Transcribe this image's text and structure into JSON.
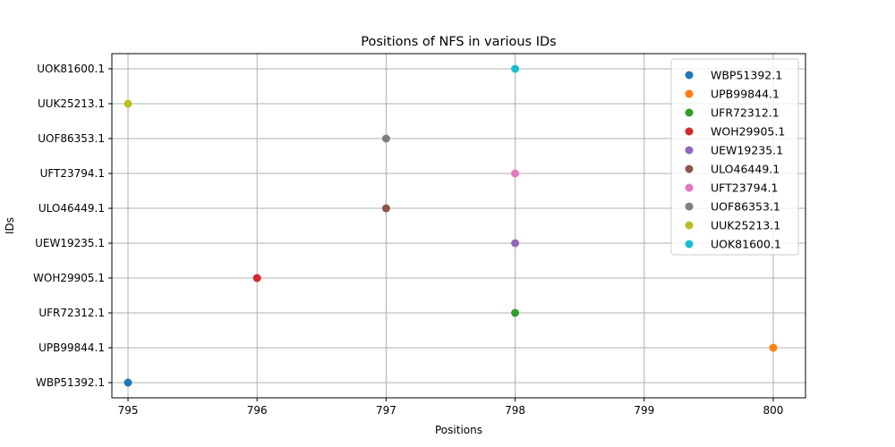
{
  "chart_data": {
    "type": "scatter",
    "title": "Positions of NFS in various IDs",
    "xlabel": "Positions",
    "ylabel": "IDs",
    "xlim": [
      794.875,
      800.25
    ],
    "x_ticks": [
      795,
      796,
      797,
      798,
      799,
      800
    ],
    "categories": [
      "WBP51392.1",
      "UPB99844.1",
      "UFR72312.1",
      "WOH29905.1",
      "UEW19235.1",
      "ULO46449.1",
      "UFT23794.1",
      "UOF86353.1",
      "UUK25213.1",
      "UOK81600.1"
    ],
    "grid": true,
    "legend_position": "top-right",
    "series": [
      {
        "name": "WBP51392.1",
        "x": 795,
        "y": "WBP51392.1",
        "color": "#1f77b4"
      },
      {
        "name": "UPB99844.1",
        "x": 800,
        "y": "UPB99844.1",
        "color": "#ff7f0e"
      },
      {
        "name": "UFR72312.1",
        "x": 798,
        "y": "UFR72312.1",
        "color": "#2ca02c"
      },
      {
        "name": "WOH29905.1",
        "x": 796,
        "y": "WOH29905.1",
        "color": "#d62728"
      },
      {
        "name": "UEW19235.1",
        "x": 798,
        "y": "UEW19235.1",
        "color": "#9467bd"
      },
      {
        "name": "ULO46449.1",
        "x": 797,
        "y": "ULO46449.1",
        "color": "#8c564b"
      },
      {
        "name": "UFT23794.1",
        "x": 798,
        "y": "UFT23794.1",
        "color": "#e377c2"
      },
      {
        "name": "UOF86353.1",
        "x": 797,
        "y": "UOF86353.1",
        "color": "#7f7f7f"
      },
      {
        "name": "UUK25213.1",
        "x": 795,
        "y": "UUK25213.1",
        "color": "#bcbd22"
      },
      {
        "name": "UOK81600.1",
        "x": 798,
        "y": "UOK81600.1",
        "color": "#17becf"
      }
    ]
  }
}
